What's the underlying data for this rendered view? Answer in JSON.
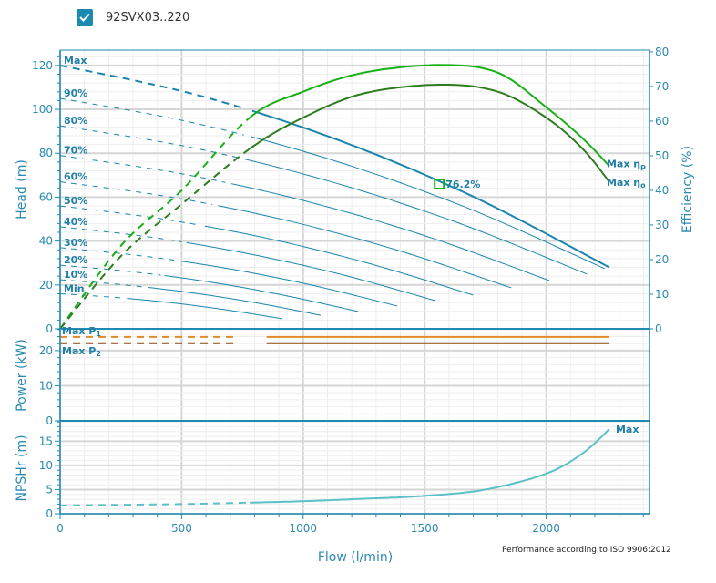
{
  "legend": {
    "label": "92SVX03..220",
    "checked": true,
    "color": "#1b8ab0"
  },
  "footer": "Performance according to ISO 9906:2012",
  "chart_data": {
    "type": "line",
    "xlabel": "Flow (l/min)",
    "xlim": [
      0,
      2425
    ],
    "xticks": [
      0,
      500,
      1000,
      1500,
      2000
    ],
    "grid": true,
    "panels": {
      "head": {
        "ylabel": "Head (m)",
        "ylim": [
          0,
          127
        ],
        "yticks": [
          0,
          20,
          40,
          60,
          80,
          100,
          120
        ],
        "y2label": "Efficiency (%)",
        "y2lim": [
          0,
          80.5
        ],
        "y2ticks": [
          0,
          10,
          20,
          30,
          40,
          50,
          60,
          70,
          80
        ],
        "speed_curves": [
          {
            "label": "Max",
            "color": "#1a85ad",
            "dashed_until": 765,
            "points": [
              [
                0,
                120
              ],
              [
                565,
                106.5
              ],
              [
                1130,
                86.6
              ],
              [
                1695,
                60.5
              ],
              [
                2260,
                28
              ]
            ]
          },
          {
            "label": "90%",
            "color": "#1a85ad",
            "dashed_until": 760,
            "points": [
              [
                0,
                105
              ],
              [
                560,
                93.6
              ],
              [
                1120,
                76.9
              ],
              [
                1680,
                54.9
              ],
              [
                2240,
                27.5
              ]
            ]
          },
          {
            "label": "80%",
            "color": "#1a85ad",
            "dashed_until": 735,
            "points": [
              [
                0,
                92.5
              ],
              [
                542,
                82.6
              ],
              [
                1084,
                68
              ],
              [
                1625,
                48.8
              ],
              [
                2167,
                25
              ]
            ]
          },
          {
            "label": "70%",
            "color": "#1a85ad",
            "dashed_until": 680,
            "points": [
              [
                0,
                79
              ],
              [
                503,
                70.6
              ],
              [
                1007,
                58.3
              ],
              [
                1510,
                42.1
              ],
              [
                2013,
                22
              ]
            ]
          },
          {
            "label": "60%",
            "color": "#1a85ad",
            "dashed_until": 630,
            "points": [
              [
                0,
                67
              ],
              [
                464,
                59.9
              ],
              [
                928,
                49.5
              ],
              [
                1392,
                35.7
              ],
              [
                1856,
                18.7
              ]
            ]
          },
          {
            "label": "50%",
            "color": "#1a85ad",
            "dashed_until": 575,
            "points": [
              [
                0,
                56
              ],
              [
                425,
                50
              ],
              [
                850,
                41.3
              ],
              [
                1274,
                29.7
              ],
              [
                1699,
                15.4
              ]
            ]
          },
          {
            "label": "40%",
            "color": "#1a85ad",
            "dashed_until": 520,
            "points": [
              [
                0,
                46.5
              ],
              [
                385,
                41.6
              ],
              [
                771,
                34.3
              ],
              [
                1156,
                24.8
              ],
              [
                1541,
                12.9
              ]
            ]
          },
          {
            "label": "30%",
            "color": "#1a85ad",
            "dashed_until": 470,
            "points": [
              [
                0,
                37
              ],
              [
                347,
                33.1
              ],
              [
                694,
                27.4
              ],
              [
                1040,
                19.8
              ],
              [
                1387,
                10.4
              ]
            ]
          },
          {
            "label": "20%",
            "color": "#1a85ad",
            "dashed_until": 415,
            "points": [
              [
                0,
                29
              ],
              [
                307,
                25.9
              ],
              [
                613,
                21.4
              ],
              [
                920,
                15.3
              ],
              [
                1226,
                7.9
              ]
            ]
          },
          {
            "label": "10%",
            "color": "#1a85ad",
            "dashed_until": 360,
            "points": [
              [
                0,
                22.4
              ],
              [
                268,
                20
              ],
              [
                536,
                16.5
              ],
              [
                804,
                11.9
              ],
              [
                1072,
                6.2
              ]
            ]
          },
          {
            "label": "Min",
            "color": "#1a85ad",
            "dashed_until": 270,
            "points": [
              [
                0,
                16
              ],
              [
                229,
                14.3
              ],
              [
                458,
                11.9
              ],
              [
                686,
                8.6
              ],
              [
                915,
                4.6
              ]
            ]
          }
        ],
        "efficiency_curves": [
          {
            "label": "Max",
            "subscript": "ηp",
            "color": "#17b017",
            "dashed_until": 780,
            "points": [
              [
                0,
                0
              ],
              [
                250,
                24
              ],
              [
                500,
                40
              ],
              [
                780,
                61
              ],
              [
                1000,
                68.5
              ],
              [
                1250,
                74
              ],
              [
                1560,
                76.2
              ],
              [
                1800,
                74
              ],
              [
                2000,
                64
              ],
              [
                2150,
                55
              ],
              [
                2260,
                47
              ]
            ]
          },
          {
            "label": "Max",
            "subscript": "ηo",
            "color": "#2d7d1f",
            "dashed_until": 780,
            "points": [
              [
                0,
                0
              ],
              [
                250,
                21
              ],
              [
                500,
                36
              ],
              [
                780,
                52
              ],
              [
                1000,
                61
              ],
              [
                1250,
                68
              ],
              [
                1560,
                70.5
              ],
              [
                1800,
                68.5
              ],
              [
                2000,
                61
              ],
              [
                2150,
                52
              ],
              [
                2260,
                42.4
              ]
            ]
          }
        ],
        "bep_marker": {
          "flow": 1560,
          "head": 66,
          "label": "76.2%",
          "color": "#17b017"
        }
      },
      "power": {
        "ylabel": "Power (kW)",
        "ylim": [
          0,
          26.2
        ],
        "yticks": [
          0,
          10,
          20
        ],
        "curves": [
          {
            "label": "Max",
            "subscript": "P1",
            "color": "#e08a2b",
            "dashed_until": 780,
            "points": [
              [
                0,
                23.9
              ],
              [
                2260,
                23.9
              ]
            ]
          },
          {
            "label": "Max",
            "subscript": "P2",
            "color": "#8b4a10",
            "dashed_until": 780,
            "points": [
              [
                0,
                22.1
              ],
              [
                2260,
                22.1
              ]
            ]
          }
        ]
      },
      "npsh": {
        "ylabel": "NPSHr (m)",
        "ylim": [
          0,
          19.2
        ],
        "yticks": [
          0,
          5,
          10,
          15
        ],
        "curves": [
          {
            "label": "Max",
            "color": "#5cc0c8",
            "dashed_until": 780,
            "points": [
              [
                0,
                1.7
              ],
              [
                250,
                1.85
              ],
              [
                500,
                2.0
              ],
              [
                780,
                2.3
              ],
              [
                1000,
                2.6
              ],
              [
                1250,
                3.1
              ],
              [
                1500,
                3.7
              ],
              [
                1750,
                5.0
              ],
              [
                2000,
                8.3
              ],
              [
                2150,
                12.5
              ],
              [
                2260,
                17.5
              ]
            ]
          }
        ]
      }
    }
  }
}
